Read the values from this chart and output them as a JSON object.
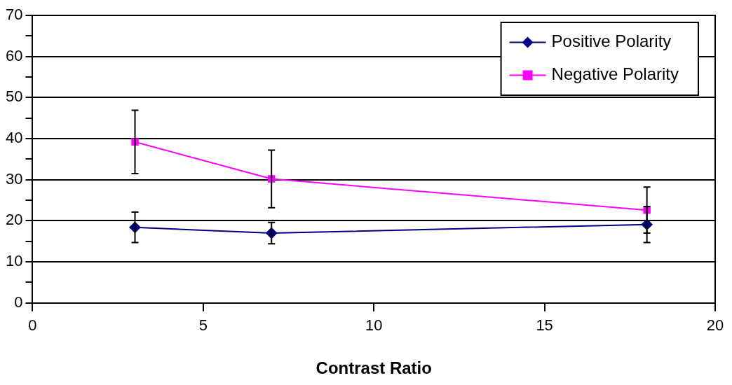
{
  "chart_data": {
    "type": "line",
    "xlabel": "Contrast Ratio",
    "x": [
      3,
      7,
      18
    ],
    "series": [
      {
        "name": "Positive Polarity",
        "color": "#000080",
        "marker": "diamond",
        "values": [
          18.4,
          17.0,
          19.1
        ],
        "errors": [
          3.7,
          2.6,
          4.4
        ]
      },
      {
        "name": "Negative Polarity",
        "color": "#ff00ff",
        "marker": "square",
        "values": [
          39.2,
          30.2,
          22.6
        ],
        "errors": [
          7.7,
          7.0,
          5.6
        ]
      }
    ],
    "xlim": [
      0,
      20
    ],
    "xticks": [
      0,
      5,
      10,
      15,
      20
    ],
    "ylim": [
      0,
      70
    ],
    "yticks": [
      0,
      {
        "value": 5,
        "label": null
      },
      10,
      {
        "value": 15,
        "label": null
      },
      20,
      {
        "value": 25,
        "label": null
      },
      30,
      {
        "value": 35,
        "label": null
      },
      40,
      {
        "value": 45,
        "label": null
      },
      50,
      {
        "value": 55,
        "label": null
      },
      60,
      {
        "value": 65,
        "label": null
      },
      70
    ],
    "grid": "y",
    "legend": "top right",
    "line_style": "solid"
  }
}
